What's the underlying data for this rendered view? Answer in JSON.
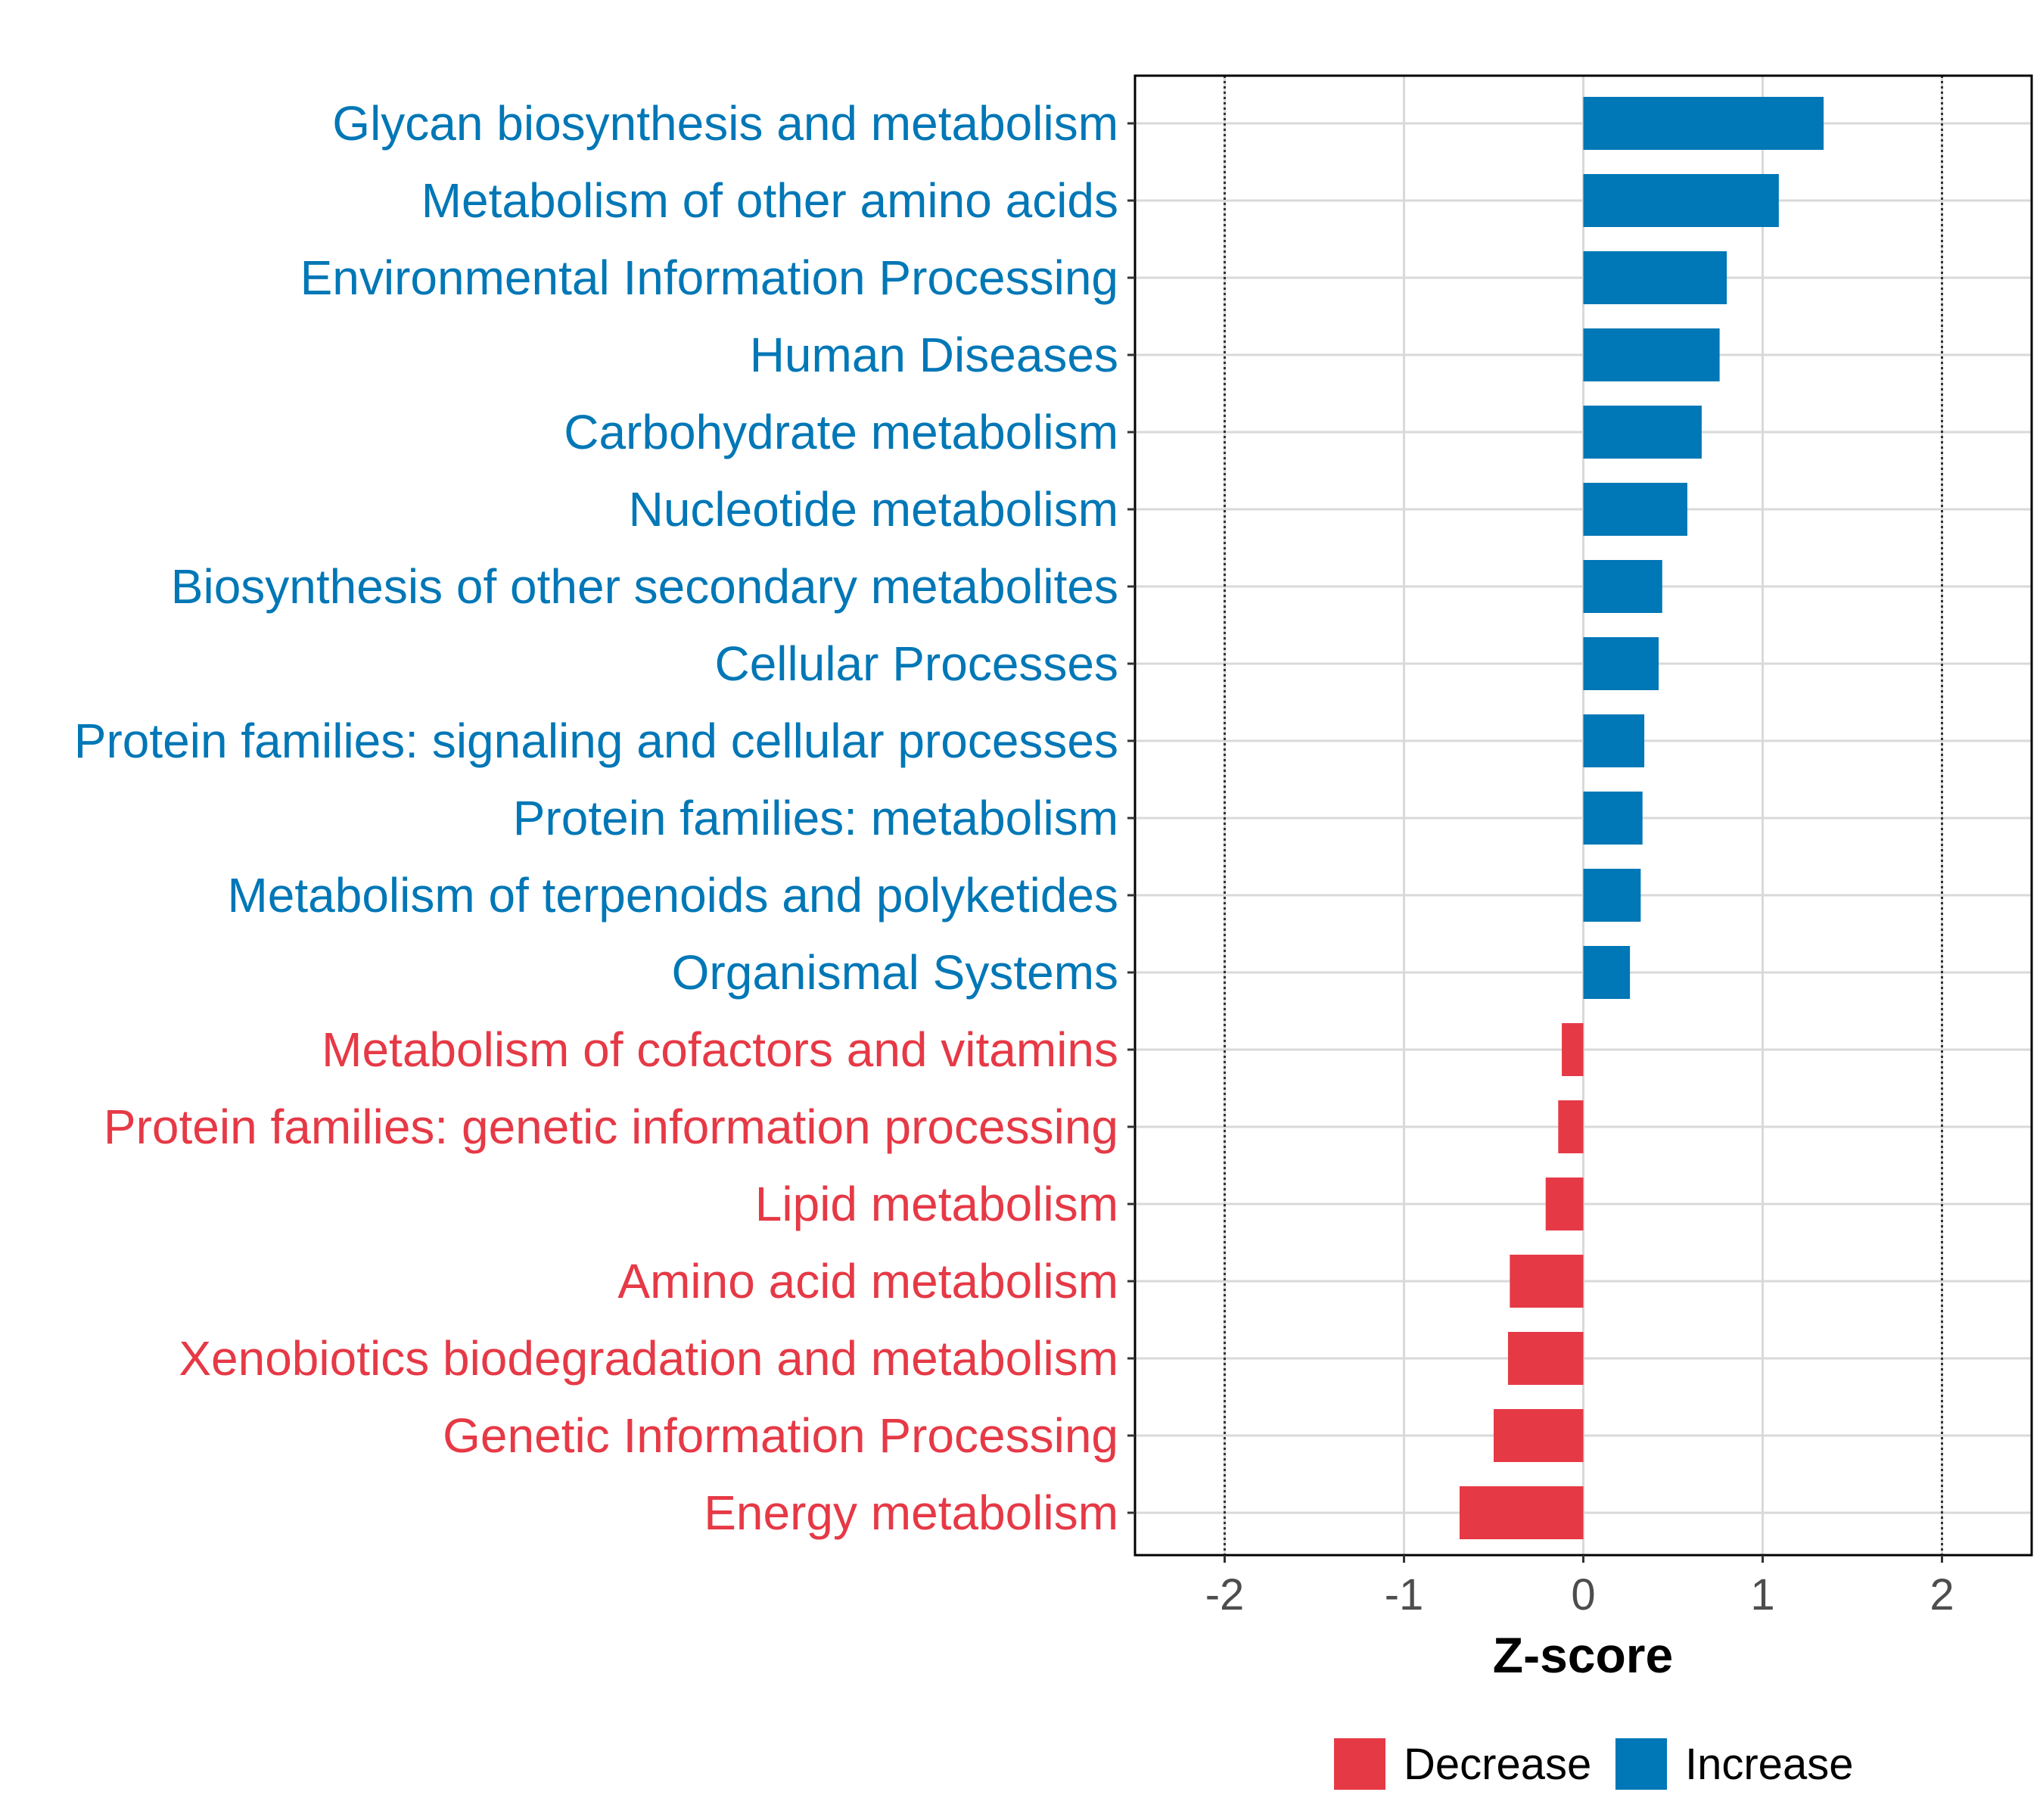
{
  "chart_data": {
    "type": "bar",
    "orientation": "horizontal",
    "title": "",
    "xlabel": "Z-score",
    "ylabel": "",
    "xlim": [
      -2.5,
      2.5
    ],
    "xticks": [
      -2,
      -1,
      0,
      1,
      2
    ],
    "xtick_labels": [
      "-2",
      "-1",
      "0",
      "1",
      "2"
    ],
    "reference_lines": [
      -2,
      2
    ],
    "grid": true,
    "legend_position": "bottom",
    "categories": [
      "Glycan biosynthesis and metabolism",
      "Metabolism of other amino acids",
      "Environmental Information Processing",
      "Human Diseases",
      "Carbohydrate metabolism",
      "Nucleotide metabolism",
      "Biosynthesis of other secondary metabolites",
      "Cellular Processes",
      "Protein families: signaling and cellular processes",
      "Protein families: metabolism",
      "Metabolism of terpenoids and polyketides",
      "Organismal Systems",
      "Metabolism of cofactors and vitamins",
      "Protein families: genetic information processing",
      "Lipid metabolism",
      "Amino acid metabolism",
      "Xenobiotics biodegradation and metabolism",
      "Genetic Information Processing",
      "Energy metabolism"
    ],
    "values": [
      1.34,
      1.09,
      0.8,
      0.76,
      0.66,
      0.58,
      0.44,
      0.42,
      0.34,
      0.33,
      0.32,
      0.26,
      -0.12,
      -0.14,
      -0.21,
      -0.41,
      -0.42,
      -0.5,
      -0.69
    ],
    "groups": [
      "Increase",
      "Increase",
      "Increase",
      "Increase",
      "Increase",
      "Increase",
      "Increase",
      "Increase",
      "Increase",
      "Increase",
      "Increase",
      "Increase",
      "Decrease",
      "Decrease",
      "Decrease",
      "Decrease",
      "Decrease",
      "Decrease",
      "Decrease"
    ],
    "legend": [
      {
        "name": "Decrease",
        "color": "#E63946"
      },
      {
        "name": "Increase",
        "color": "#0077B6"
      }
    ]
  }
}
